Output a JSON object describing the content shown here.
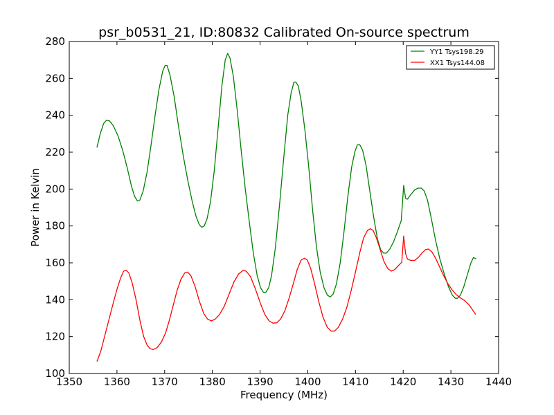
{
  "chart_data": {
    "type": "line",
    "title": "psr_b0531_21, ID:80832 Calibrated On-source spectrum",
    "xlabel": "Frequency (MHz)",
    "ylabel": "Power in Kelvin",
    "xlim": [
      1350,
      1440
    ],
    "ylim": [
      100,
      280
    ],
    "xticks": [
      1350,
      1360,
      1370,
      1380,
      1390,
      1400,
      1410,
      1420,
      1430,
      1440
    ],
    "yticks": [
      100,
      120,
      140,
      160,
      180,
      200,
      220,
      240,
      260,
      280
    ],
    "grid": false,
    "legend_position": "top-right",
    "series": [
      {
        "name": "YY1 Tsys198.29",
        "color": "#008000",
        "points": [
          [
            1355.8,
            222.5
          ],
          [
            1356.5,
            230
          ],
          [
            1357.2,
            235.5
          ],
          [
            1357.8,
            237.3
          ],
          [
            1358.4,
            237
          ],
          [
            1359.2,
            234.5
          ],
          [
            1360.2,
            229
          ],
          [
            1361.2,
            221
          ],
          [
            1362.2,
            211
          ],
          [
            1363.0,
            202
          ],
          [
            1363.7,
            196
          ],
          [
            1364.3,
            193.5
          ],
          [
            1364.8,
            194
          ],
          [
            1365.5,
            199
          ],
          [
            1366.3,
            209
          ],
          [
            1367.1,
            223
          ],
          [
            1368.0,
            240
          ],
          [
            1368.8,
            254
          ],
          [
            1369.6,
            264
          ],
          [
            1370.1,
            267
          ],
          [
            1370.5,
            267
          ],
          [
            1371.1,
            262
          ],
          [
            1372.0,
            250
          ],
          [
            1372.9,
            234
          ],
          [
            1373.9,
            218
          ],
          [
            1374.9,
            204
          ],
          [
            1375.8,
            193
          ],
          [
            1376.6,
            185
          ],
          [
            1377.3,
            180.5
          ],
          [
            1377.8,
            179.3
          ],
          [
            1378.3,
            180
          ],
          [
            1378.9,
            184
          ],
          [
            1379.6,
            193
          ],
          [
            1380.4,
            210
          ],
          [
            1381.2,
            233
          ],
          [
            1382.0,
            256
          ],
          [
            1382.7,
            270
          ],
          [
            1383.2,
            273.5
          ],
          [
            1383.7,
            271
          ],
          [
            1384.4,
            261
          ],
          [
            1385.2,
            243
          ],
          [
            1386.0,
            222
          ],
          [
            1386.9,
            200
          ],
          [
            1387.8,
            181
          ],
          [
            1388.6,
            165
          ],
          [
            1389.4,
            153
          ],
          [
            1390.1,
            146.5
          ],
          [
            1390.7,
            144
          ],
          [
            1391.2,
            144
          ],
          [
            1391.8,
            146.5
          ],
          [
            1392.4,
            153
          ],
          [
            1393.2,
            168
          ],
          [
            1394.1,
            192
          ],
          [
            1395.0,
            218
          ],
          [
            1395.8,
            240
          ],
          [
            1396.5,
            252
          ],
          [
            1397.1,
            258
          ],
          [
            1397.5,
            258
          ],
          [
            1398.0,
            256
          ],
          [
            1398.6,
            248
          ],
          [
            1399.4,
            232
          ],
          [
            1400.2,
            212
          ],
          [
            1401.0,
            189
          ],
          [
            1401.8,
            169
          ],
          [
            1402.6,
            155
          ],
          [
            1403.4,
            146.5
          ],
          [
            1404.1,
            142.5
          ],
          [
            1404.7,
            141.5
          ],
          [
            1405.3,
            143
          ],
          [
            1406.0,
            148.5
          ],
          [
            1406.8,
            160
          ],
          [
            1407.6,
            177
          ],
          [
            1408.4,
            196
          ],
          [
            1409.2,
            212
          ],
          [
            1409.9,
            220.5
          ],
          [
            1410.4,
            224
          ],
          [
            1410.9,
            224
          ],
          [
            1411.5,
            221
          ],
          [
            1412.2,
            213
          ],
          [
            1413.0,
            199
          ],
          [
            1413.8,
            185
          ],
          [
            1414.6,
            173
          ],
          [
            1415.3,
            167
          ],
          [
            1415.9,
            165.3
          ],
          [
            1416.5,
            165.3
          ],
          [
            1417.2,
            167.5
          ],
          [
            1418.0,
            171.5
          ],
          [
            1418.8,
            177
          ],
          [
            1419.6,
            183
          ],
          [
            1420.1,
            202
          ],
          [
            1420.5,
            195
          ],
          [
            1420.9,
            194.5
          ],
          [
            1421.6,
            197
          ],
          [
            1422.4,
            199.5
          ],
          [
            1423.1,
            200.5
          ],
          [
            1423.8,
            200.5
          ],
          [
            1424.4,
            199
          ],
          [
            1425.1,
            194
          ],
          [
            1425.9,
            184
          ],
          [
            1426.8,
            172
          ],
          [
            1427.7,
            162
          ],
          [
            1428.6,
            154
          ],
          [
            1429.5,
            147
          ],
          [
            1430.3,
            142.5
          ],
          [
            1430.9,
            140.8
          ],
          [
            1431.4,
            140.8
          ],
          [
            1432.0,
            142.5
          ],
          [
            1432.7,
            147
          ],
          [
            1433.5,
            154
          ],
          [
            1434.2,
            160
          ],
          [
            1434.7,
            162.8
          ],
          [
            1435.3,
            162.3
          ]
        ]
      },
      {
        "name": "XX1 Tsys144.08",
        "color": "#ff0000",
        "points": [
          [
            1355.8,
            106.5
          ],
          [
            1356.6,
            112
          ],
          [
            1357.5,
            121
          ],
          [
            1358.4,
            130
          ],
          [
            1359.3,
            139
          ],
          [
            1360.1,
            146.5
          ],
          [
            1360.8,
            152
          ],
          [
            1361.4,
            155.5
          ],
          [
            1361.9,
            156
          ],
          [
            1362.5,
            154.5
          ],
          [
            1363.2,
            149
          ],
          [
            1364.0,
            140
          ],
          [
            1364.8,
            129
          ],
          [
            1365.6,
            120
          ],
          [
            1366.3,
            115.5
          ],
          [
            1366.9,
            113.5
          ],
          [
            1367.6,
            113
          ],
          [
            1368.4,
            114
          ],
          [
            1369.3,
            117
          ],
          [
            1370.2,
            122
          ],
          [
            1371.0,
            129
          ],
          [
            1371.8,
            137
          ],
          [
            1372.6,
            145
          ],
          [
            1373.4,
            151
          ],
          [
            1374.2,
            154.5
          ],
          [
            1374.8,
            155
          ],
          [
            1375.5,
            153
          ],
          [
            1376.4,
            147
          ],
          [
            1377.3,
            139
          ],
          [
            1378.2,
            132.5
          ],
          [
            1379.0,
            129.5
          ],
          [
            1379.8,
            128.5
          ],
          [
            1380.6,
            129.5
          ],
          [
            1381.5,
            132
          ],
          [
            1382.5,
            136.5
          ],
          [
            1383.5,
            143
          ],
          [
            1384.5,
            149.5
          ],
          [
            1385.5,
            154
          ],
          [
            1386.4,
            155.8
          ],
          [
            1387.1,
            155.5
          ],
          [
            1388.0,
            152.5
          ],
          [
            1389.0,
            146
          ],
          [
            1390.0,
            138.5
          ],
          [
            1391.0,
            132
          ],
          [
            1391.9,
            128.5
          ],
          [
            1392.7,
            127.3
          ],
          [
            1393.5,
            127.5
          ],
          [
            1394.3,
            129.5
          ],
          [
            1395.2,
            134
          ],
          [
            1396.1,
            141
          ],
          [
            1397.0,
            149
          ],
          [
            1397.8,
            156.5
          ],
          [
            1398.6,
            161.5
          ],
          [
            1399.3,
            162.5
          ],
          [
            1399.9,
            161.5
          ],
          [
            1400.6,
            157
          ],
          [
            1401.4,
            149
          ],
          [
            1402.3,
            139
          ],
          [
            1403.2,
            130.5
          ],
          [
            1404.1,
            125
          ],
          [
            1404.9,
            123
          ],
          [
            1405.6,
            123
          ],
          [
            1406.4,
            125
          ],
          [
            1407.3,
            129.5
          ],
          [
            1408.2,
            136
          ],
          [
            1409.1,
            145
          ],
          [
            1410.0,
            155
          ],
          [
            1410.9,
            165.5
          ],
          [
            1411.7,
            173.5
          ],
          [
            1412.5,
            177.5
          ],
          [
            1413.1,
            178.5
          ],
          [
            1413.7,
            177.5
          ],
          [
            1414.4,
            173.5
          ],
          [
            1415.2,
            167
          ],
          [
            1416.0,
            160.5
          ],
          [
            1416.8,
            156.8
          ],
          [
            1417.5,
            155.5
          ],
          [
            1418.2,
            156.3
          ],
          [
            1419.0,
            158.5
          ],
          [
            1419.7,
            160.3
          ],
          [
            1420.1,
            174.5
          ],
          [
            1420.5,
            165
          ],
          [
            1420.9,
            162
          ],
          [
            1421.6,
            161.3
          ],
          [
            1422.4,
            161.3
          ],
          [
            1423.2,
            163
          ],
          [
            1424.0,
            165.5
          ],
          [
            1424.7,
            167.2
          ],
          [
            1425.3,
            167.5
          ],
          [
            1426.0,
            166
          ],
          [
            1426.8,
            162.5
          ],
          [
            1427.6,
            158
          ],
          [
            1428.4,
            153.5
          ],
          [
            1429.3,
            149
          ],
          [
            1430.2,
            145.5
          ],
          [
            1431.1,
            142.8
          ],
          [
            1432.0,
            141
          ],
          [
            1432.9,
            139.5
          ],
          [
            1433.7,
            137.5
          ],
          [
            1434.4,
            135
          ],
          [
            1435.2,
            132
          ]
        ]
      }
    ]
  }
}
